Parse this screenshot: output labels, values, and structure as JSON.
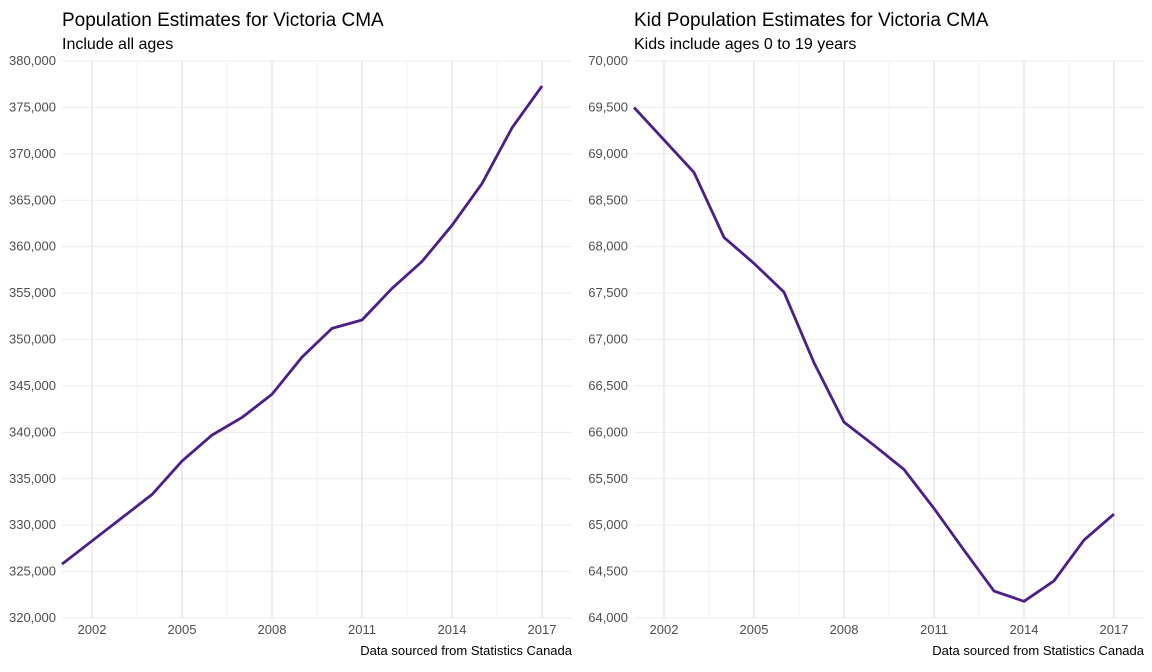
{
  "chart_data": [
    {
      "type": "line",
      "title": "Population Estimates for Victoria CMA",
      "subtitle": "Include all ages",
      "caption": "Data sourced from Statistics Canada",
      "xlabel": "",
      "ylabel": "",
      "x": [
        2001,
        2002,
        2003,
        2004,
        2005,
        2006,
        2007,
        2008,
        2009,
        2010,
        2011,
        2012,
        2013,
        2014,
        2015,
        2016,
        2017
      ],
      "series": [
        {
          "values": [
            325800,
            328300,
            330800,
            333300,
            336900,
            339700,
            341600,
            344100,
            348100,
            351200,
            352100,
            355500,
            358400,
            362300,
            366800,
            372800,
            377300
          ]
        }
      ],
      "xlim": [
        2001,
        2018
      ],
      "ylim": [
        320000,
        380000
      ],
      "x_ticks": [
        2002,
        2005,
        2008,
        2011,
        2014,
        2017
      ],
      "x_tick_labels": [
        "2002",
        "2005",
        "2008",
        "2011",
        "2014",
        "2017"
      ],
      "y_ticks": [
        320000,
        325000,
        330000,
        335000,
        340000,
        345000,
        350000,
        355000,
        360000,
        365000,
        370000,
        375000,
        380000
      ],
      "y_tick_labels": [
        "320,000",
        "325,000",
        "330,000",
        "335,000",
        "340,000",
        "345,000",
        "350,000",
        "355,000",
        "360,000",
        "365,000",
        "370,000",
        "375,000",
        "380,000"
      ],
      "grid": true,
      "line_color": "#4b1f87"
    },
    {
      "type": "line",
      "title": "Kid Population Estimates for Victoria CMA",
      "subtitle": "Kids include ages 0 to 19 years",
      "caption": "Data sourced from Statistics Canada",
      "xlabel": "",
      "ylabel": "",
      "x": [
        2001,
        2002,
        2003,
        2004,
        2005,
        2006,
        2007,
        2008,
        2009,
        2010,
        2011,
        2012,
        2013,
        2014,
        2015,
        2016,
        2017
      ],
      "series": [
        {
          "values": [
            69500,
            69150,
            68800,
            68100,
            67820,
            67510,
            66750,
            66110,
            65860,
            65600,
            65180,
            64730,
            64290,
            64180,
            64400,
            64840,
            65120
          ]
        }
      ],
      "xlim": [
        2001,
        2018
      ],
      "ylim": [
        64000,
        70000
      ],
      "x_ticks": [
        2002,
        2005,
        2008,
        2011,
        2014,
        2017
      ],
      "x_tick_labels": [
        "2002",
        "2005",
        "2008",
        "2011",
        "2014",
        "2017"
      ],
      "y_ticks": [
        64000,
        64500,
        65000,
        65500,
        66000,
        66500,
        67000,
        67500,
        68000,
        68500,
        69000,
        69500,
        70000
      ],
      "y_tick_labels": [
        "64,000",
        "64,500",
        "65,000",
        "65,500",
        "66,000",
        "66,500",
        "67,000",
        "67,500",
        "68,000",
        "68,500",
        "69,000",
        "69,500",
        "70,000"
      ],
      "grid": true,
      "line_color": "#4b1f87"
    }
  ]
}
